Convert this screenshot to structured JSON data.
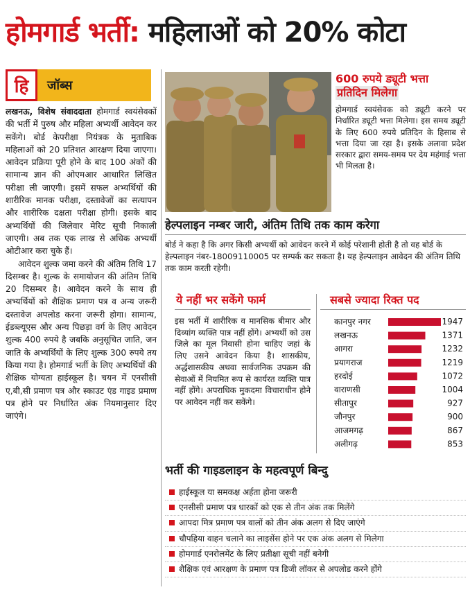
{
  "headline": {
    "part1": "होमगार्ड भर्ती:",
    "part2": " महिलाओं को 20% कोटा"
  },
  "brand": {
    "logo": "हि",
    "label": "जॉब्स"
  },
  "article": {
    "byline": "लखनऊ, विशेष संवाददाता",
    "paragraphs": [
      "होमगार्ड स्वयंसेवकों की भर्ती में पुरुष और महिला अभ्यर्थी आवेदन कर सकेंगे। बोर्ड केपरीक्षा नियंत्रक के मुताबिक महिलाओं को 20 प्रतिशत आरक्षण दिया जाएगा। आवेदन प्रक्रिया पूरी होने के बाद 100 अंकों की सामान्य ज्ञान की ओएमआर आधारित लिखित परीक्षा ली जाएगी। इसमें सफल अभ्यर्थियों की शारीरिक मानक परीक्षा, दस्तावेजों का सत्यापन और शारीरिक दक्षता परीक्षा होगी। इसके बाद अभ्यर्थियों की जिलेवार मेरिट सूची निकाली जाएगी। अब तक एक लाख से अधिक अभ्यर्थी ओटीआर करा चुके हैं।",
      "आवेदन शुल्क जमा करने की अंतिम तिथि 17 दिसम्बर है। शुल्क के समायोजन की अंतिम तिथि 20 दिसम्बर है। आवेदन करने के साथ ही अभ्यर्थियों को शैक्षिक प्रमाण पत्र व अन्य जरूरी दस्तावेज अपलोड करना जरूरी होगा। सामान्य, ईडब्ल्यूएस और अन्य पिछड़ा वर्ग के लिए आवेदन शुल्क 400 रुपये है जबकि अनुसूचित जाति, जन जाति के अभ्यर्थियों के लिए शुल्क 300 रुपये तय किया गया है। होमगार्ड भर्ती के लिए अभ्यर्थियों की शैक्षिक योग्यता हाईस्कूल है। चयन में एनसीसी ए,बी,सी प्रमाण पत्र और स्काउट एंड गाइड प्रमाण पत्र होने पर निर्धारित अंक नियमानुसार दिए जाएंगे।"
    ]
  },
  "duty": {
    "title_line1": "600 रुपये ड्यूटी भत्ता",
    "title_line2": "प्रतिदिन मिलेगा",
    "body": "होमगार्ड स्वयंसेवक को ड्यूटी करने पर निर्धारित ड्यूटी भत्ता मिलेगा। इस समय ड्यूटी के लिए 600 रुपये प्रतिदिन के हिसाब से भत्ता दिया जा रहा है। इसके अलावा प्रदेश सरकार द्वारा समय-समय पर देय महंगाई भत्ता भी मिलता है।"
  },
  "helpline": {
    "title": "हेल्पलाइन नम्बर जारी, अंतिम तिथि तक काम करेगा",
    "body": "बोर्ड ने कहा है कि अगर किसी अभ्यर्थी को आवेदन करने में कोई परेशानी होती है तो वह बोर्ड के हेल्पलाइन नंबर-18009110005 पर सम्पर्क कर सकता है। यह हेल्पलाइन आवेदन की अंतिम तिथि तक काम करती रहेगी।"
  },
  "ineligible": {
    "title": "ये नहीं भर सकेंगे फार्म",
    "body": "इस भर्ती में शारीरिक व मानसिक बीमार और दिव्यांग व्यक्ति पात्र नहीं होंगे। अभ्यर्थी को उस जिले का मूल निवासी होना चाहिए जहां के लिए उसने आवेदन किया है। शासकीय, अर्द्धशासकीय अथवा सार्वजनिक उपक्रम की सेवाओं में नियमित रूप से कार्यरत व्यक्ति पात्र नहीं होंगे। अपराधिक मुकदमा विचाराधीन होने पर आवेदन नहीं कर सकेंगे।"
  },
  "vacancy": {
    "title": "सबसे ज्यादा रिक्त पद",
    "bar_color": "#c8102e"
  },
  "chart_data": {
    "type": "bar",
    "orientation": "horizontal",
    "title": "सबसे ज्यादा रिक्त पद",
    "categories": [
      "कानपुर नगर",
      "लखनऊ",
      "आगरा",
      "प्रयागराज",
      "हरदोई",
      "वाराणसी",
      "सीतापुर",
      "जौनपुर",
      "आजमगढ़",
      "अलीगढ़"
    ],
    "values": [
      1947,
      1371,
      1232,
      1219,
      1072,
      1004,
      927,
      900,
      867,
      853
    ]
  },
  "guideline": {
    "title": "भर्ती की गाइडलाइन के महत्वपूर्ण बिन्दु",
    "items": [
      "हाईस्कूल या समकक्ष अर्हता होना जरूरी",
      "एनसीसी प्रमाण पत्र धारकों को एक से तीन अंक तक मिलेंगे",
      "आपदा मित्र प्रमाण पत्र वालों को तीन अंक अलग से दिए जाएंगे",
      "चौपहिया वाहन चलाने का लाइसेंस होने पर एक अंक अलग से मिलेगा",
      "होमगार्ड एनरोलमेंट के लिए प्रतीक्षा सूची नहीं बनेगी",
      "शैक्षिक एवं आरक्षण के प्रमाण पत्र डिजी लॉकर से अपलोड करने होंगे"
    ]
  }
}
